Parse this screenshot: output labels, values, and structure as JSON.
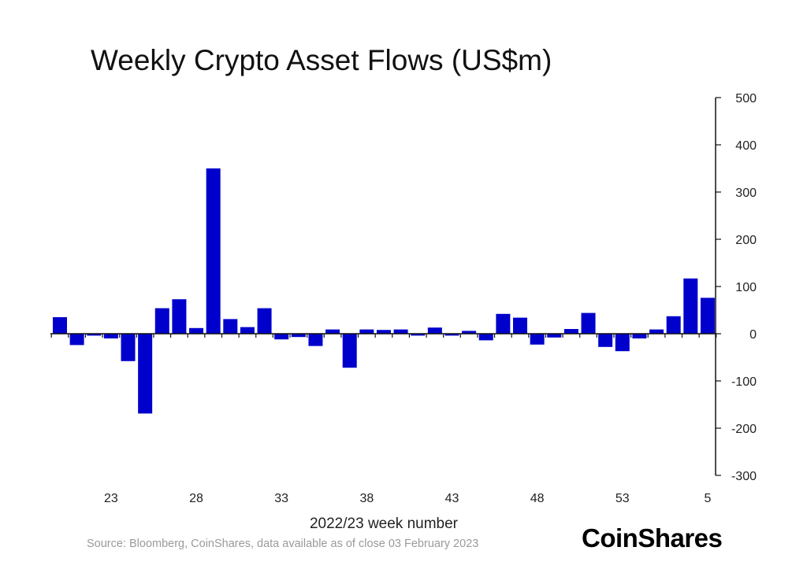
{
  "chart_data": {
    "type": "bar",
    "title": "Weekly Crypto Asset Flows (US$m)",
    "xlabel": "2022/23 week number",
    "ylabel": "",
    "ylim": [
      -300,
      500
    ],
    "yticks": [
      500,
      400,
      300,
      200,
      100,
      0,
      -100,
      -200,
      -300
    ],
    "y_axis_side": "right",
    "grid": false,
    "bar_color": "#0000CC",
    "categories": [
      20,
      21,
      22,
      23,
      24,
      25,
      26,
      27,
      28,
      29,
      30,
      31,
      32,
      33,
      34,
      35,
      36,
      37,
      38,
      39,
      40,
      41,
      42,
      43,
      44,
      45,
      46,
      47,
      48,
      49,
      50,
      51,
      52,
      53,
      1,
      2,
      3,
      4,
      5
    ],
    "xtick_labels": [
      "23",
      "28",
      "33",
      "38",
      "43",
      "48",
      "53",
      "5"
    ],
    "values": [
      35,
      -24,
      -4,
      -10,
      -58,
      -169,
      54,
      73,
      12,
      350,
      31,
      14,
      54,
      -12,
      -7,
      -26,
      9,
      -72,
      9,
      8,
      9,
      -4,
      13,
      -4,
      6,
      -14,
      42,
      34,
      -23,
      -8,
      10,
      44,
      -28,
      -37,
      -10,
      9,
      37,
      117,
      76
    ]
  },
  "source": "Source: Bloomberg, CoinShares, data available as of close 03 February 2023",
  "logo": "CoinShares"
}
